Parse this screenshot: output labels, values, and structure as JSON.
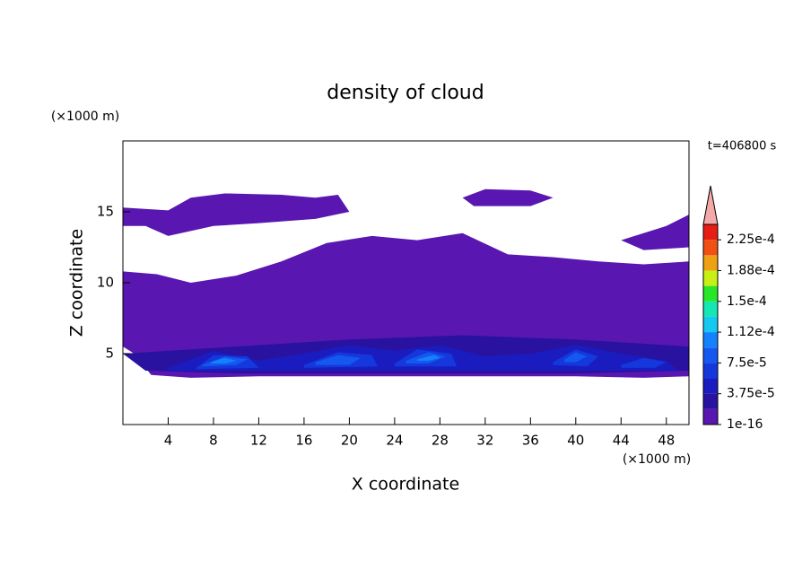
{
  "chart_data": {
    "type": "contour",
    "title": "density of cloud",
    "xlabel": "X coordinate",
    "ylabel": "Z coordinate",
    "x_unit": "(×1000 m)",
    "y_unit": "(×1000 m)",
    "annotation": "t=406800 s",
    "xlim": [
      0,
      50
    ],
    "ylim": [
      0,
      20
    ],
    "xticks": [
      4,
      8,
      12,
      16,
      20,
      24,
      28,
      32,
      36,
      40,
      44,
      48
    ],
    "yticks": [
      5,
      10,
      15
    ],
    "colorbar": {
      "levels": [
        1e-16,
        1.875e-05,
        3.75e-05,
        5.625e-05,
        7.5e-05,
        9.375e-05,
        0.0001125,
        0.00013125,
        0.00015,
        0.00016875,
        0.0001875,
        0.00020625,
        0.000225
      ],
      "colors": [
        "#5a16b0",
        "#2a12a0",
        "#1a1cc0",
        "#1438dc",
        "#1458f0",
        "#1482ff",
        "#14c8f0",
        "#14e6b4",
        "#28e628",
        "#c8f014",
        "#f0a014",
        "#f05014",
        "#e61e14"
      ],
      "overflow_color": "#f4a8a8",
      "clim": [
        1e-16,
        0.00024375
      ],
      "ticks": [
        {
          "value": 1e-16,
          "label": "1e-16"
        },
        {
          "value": 3.75e-05,
          "label": "3.75e-5"
        },
        {
          "value": 7.5e-05,
          "label": "7.5e-5"
        },
        {
          "value": 0.0001125,
          "label": "1.12e-4"
        },
        {
          "value": 0.00015,
          "label": "1.5e-4"
        },
        {
          "value": 0.0001875,
          "label": "1.88e-4"
        },
        {
          "value": 0.000225,
          "label": "2.25e-4"
        }
      ]
    },
    "contours": [
      {
        "level": 1e-16,
        "x": [
          0,
          3,
          6,
          10,
          14,
          18,
          22,
          26,
          30,
          34,
          38,
          42,
          46,
          50,
          50,
          46,
          40,
          30,
          20,
          12,
          6,
          2.5,
          1,
          0
        ],
        "z": [
          10.8,
          10.6,
          10,
          10.5,
          11.5,
          12.8,
          13.3,
          13,
          13.5,
          12,
          11.8,
          11.5,
          11.3,
          11.5,
          3.4,
          3.3,
          3.4,
          3.4,
          3.4,
          3.4,
          3.3,
          3.5,
          5,
          5.5
        ]
      },
      {
        "level": 1e-16,
        "x": [
          0,
          0,
          4,
          6,
          9,
          14,
          17,
          19,
          20,
          17,
          12,
          8,
          4,
          2
        ],
        "z": [
          14,
          15.3,
          15.1,
          16,
          16.3,
          16.2,
          16,
          16.2,
          15,
          14.5,
          14.2,
          14,
          13.3,
          14
        ]
      },
      {
        "level": 1e-16,
        "x": [
          30,
          32,
          36,
          38,
          36,
          31
        ],
        "z": [
          16,
          16.6,
          16.5,
          16,
          15.4,
          15.4
        ]
      },
      {
        "level": 1e-16,
        "x": [
          44,
          48,
          50,
          50,
          46
        ],
        "z": [
          13,
          14,
          14.8,
          12.5,
          12.3
        ]
      },
      {
        "level": 1.875e-05,
        "x": [
          0,
          10,
          20,
          30,
          40,
          50,
          50,
          40,
          30,
          20,
          10,
          2
        ],
        "z": [
          5,
          5.5,
          6,
          6.3,
          6,
          5.5,
          3.8,
          3.6,
          3.6,
          3.6,
          3.6,
          3.8
        ]
      },
      {
        "level": 3.75e-05,
        "x": [
          4,
          8,
          12,
          16,
          20,
          24,
          28,
          32,
          36,
          40,
          44,
          48,
          49,
          4
        ],
        "z": [
          4,
          5.2,
          4.5,
          5,
          5.6,
          5.2,
          5.6,
          4.8,
          5,
          5.6,
          5,
          4.5,
          3.8,
          3.8
        ]
      },
      {
        "level": 5.625e-05,
        "x": [
          6.5,
          8,
          11,
          12,
          6.5
        ],
        "z": [
          4,
          4.9,
          4.8,
          4,
          3.9
        ]
      },
      {
        "level": 5.625e-05,
        "x": [
          16,
          19,
          22,
          22.5,
          16
        ],
        "z": [
          4.2,
          5.1,
          4.9,
          4.1,
          4
        ]
      },
      {
        "level": 5.625e-05,
        "x": [
          24,
          26,
          29,
          29.5,
          24
        ],
        "z": [
          4.3,
          5.3,
          5,
          4.1,
          4.1
        ]
      },
      {
        "level": 5.625e-05,
        "x": [
          38,
          40,
          42,
          41,
          38
        ],
        "z": [
          4.4,
          5.3,
          4.8,
          4.1,
          4.2
        ]
      },
      {
        "level": 5.625e-05,
        "x": [
          44,
          46,
          48,
          47,
          44
        ],
        "z": [
          4.2,
          4.7,
          4.4,
          4,
          4
        ]
      },
      {
        "level": 7.5e-05,
        "x": [
          7,
          9,
          11,
          10,
          7
        ],
        "z": [
          4.2,
          4.8,
          4.6,
          4.2,
          4.1
        ]
      },
      {
        "level": 7.5e-05,
        "x": [
          17,
          19,
          21,
          20,
          17
        ],
        "z": [
          4.4,
          4.9,
          4.7,
          4.2,
          4.2
        ]
      },
      {
        "level": 7.5e-05,
        "x": [
          25,
          27,
          28.5,
          27,
          25
        ],
        "z": [
          4.5,
          5.1,
          4.8,
          4.3,
          4.3
        ]
      },
      {
        "level": 7.5e-05,
        "x": [
          39,
          40,
          41,
          40,
          39
        ],
        "z": [
          4.6,
          5.1,
          4.8,
          4.4,
          4.4
        ]
      },
      {
        "level": 9.375e-05,
        "x": [
          7.8,
          9,
          10,
          9,
          7.8
        ],
        "z": [
          4.4,
          4.7,
          4.5,
          4.3,
          4.3
        ]
      },
      {
        "level": 9.375e-05,
        "x": [
          26,
          27.5,
          28,
          27,
          26
        ],
        "z": [
          4.6,
          4.9,
          4.7,
          4.5,
          4.5
        ]
      }
    ]
  }
}
